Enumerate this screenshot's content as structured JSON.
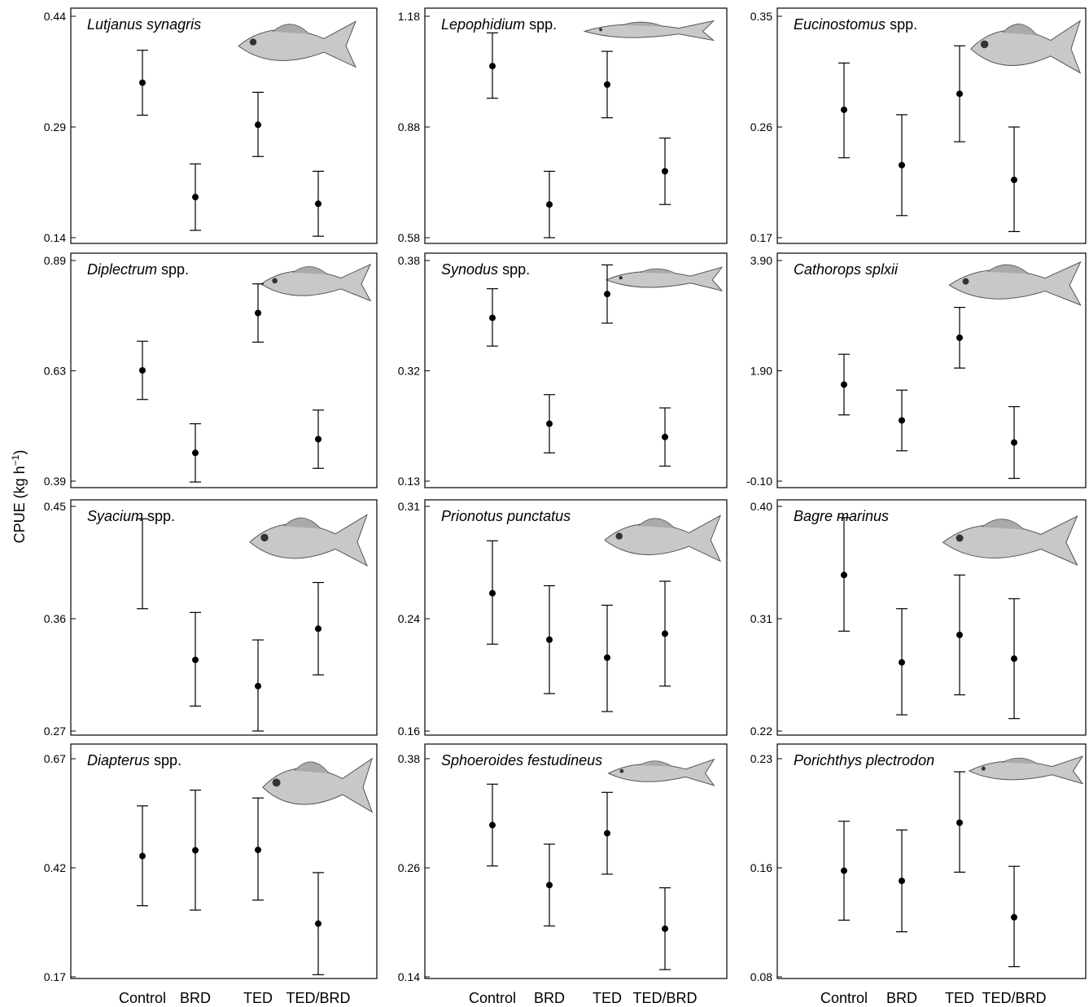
{
  "ylabel": "CPUE (kg h",
  "ylabel_sup": "−1",
  "ylabel_end": ")",
  "icons": {
    "fish": "fish-illustration"
  },
  "chart_data": [
    {
      "type": "scatter",
      "error_bars": true,
      "species_italic": "Lutjanus synagris",
      "species_suffix": "",
      "categories": [
        "Control",
        "BRD",
        "TED",
        "TED/BRD"
      ],
      "yticks": [
        "0.44",
        "0.29",
        "0.14"
      ],
      "ylim": [
        0.14,
        0.44
      ],
      "values": [
        0.35,
        0.195,
        0.293,
        0.186
      ],
      "lower": [
        0.306,
        0.15,
        0.25,
        0.142
      ],
      "upper": [
        0.394,
        0.24,
        0.337,
        0.23
      ]
    },
    {
      "type": "scatter",
      "error_bars": true,
      "species_italic": "Lepophidium",
      "species_suffix": " spp.",
      "categories": [
        "Control",
        "BRD",
        "TED",
        "TED/BRD"
      ],
      "yticks": [
        "1.18",
        "0.88",
        "0.58"
      ],
      "ylim": [
        0.58,
        1.18
      ],
      "values": [
        1.045,
        0.67,
        0.995,
        0.76
      ],
      "lower": [
        0.958,
        0.58,
        0.905,
        0.67
      ],
      "upper": [
        1.135,
        0.76,
        1.085,
        0.85
      ]
    },
    {
      "type": "scatter",
      "error_bars": true,
      "species_italic": "Eucinostomus",
      "species_suffix": " spp.",
      "categories": [
        "Control",
        "BRD",
        "TED",
        "TED/BRD"
      ],
      "yticks": [
        "0.35",
        "0.26",
        "0.17"
      ],
      "ylim": [
        0.17,
        0.35
      ],
      "values": [
        0.274,
        0.229,
        0.287,
        0.217
      ],
      "lower": [
        0.235,
        0.188,
        0.248,
        0.175
      ],
      "upper": [
        0.312,
        0.27,
        0.326,
        0.26
      ]
    },
    {
      "type": "scatter",
      "error_bars": true,
      "species_italic": "Diplectrum",
      "species_suffix": " spp.",
      "categories": [
        "Control",
        "BRD",
        "TED",
        "TED/BRD"
      ],
      "yticks": [
        "0.89",
        "0.63",
        "0.39"
      ],
      "ylim": [
        0.39,
        0.89
      ],
      "values": [
        0.641,
        0.454,
        0.771,
        0.485
      ],
      "lower": [
        0.575,
        0.388,
        0.705,
        0.419
      ],
      "upper": [
        0.707,
        0.52,
        0.837,
        0.551
      ]
    },
    {
      "type": "scatter",
      "error_bars": true,
      "species_italic": "Synodus",
      "species_suffix": " spp.",
      "categories": [
        "Control",
        "BRD",
        "TED",
        "TED/BRD"
      ],
      "yticks": [
        "0.38",
        "0.32",
        "0.13"
      ],
      "ylim": [
        0.13,
        0.38
      ],
      "values": [
        0.315,
        0.195,
        0.342,
        0.18
      ],
      "lower": [
        0.283,
        0.162,
        0.309,
        0.147
      ],
      "upper": [
        0.348,
        0.228,
        0.375,
        0.213
      ]
    },
    {
      "type": "scatter",
      "error_bars": true,
      "species_italic": "Cathorops splxii",
      "species_suffix": "",
      "categories": [
        "Control",
        "BRD",
        "TED",
        "TED/BRD"
      ],
      "yticks": [
        "3.90",
        "1.90",
        "-0.10"
      ],
      "ylim": [
        -0.1,
        3.9
      ],
      "values": [
        1.65,
        1.0,
        2.5,
        0.6
      ],
      "lower": [
        1.1,
        0.45,
        1.95,
        -0.05
      ],
      "upper": [
        2.2,
        1.55,
        3.05,
        1.25
      ]
    },
    {
      "type": "scatter",
      "error_bars": true,
      "species_italic": "Syacium",
      "species_suffix": " spp.",
      "categories": [
        "Control",
        "BRD",
        "TED",
        "TED/BRD"
      ],
      "yticks": [
        "0.45",
        "0.36",
        "0.27"
      ],
      "ylim": [
        0.27,
        0.45
      ],
      "values": [
        null,
        0.327,
        0.306,
        0.352
      ],
      "lower": [
        0.368,
        0.29,
        0.27,
        0.315
      ],
      "upper": [
        0.44,
        0.365,
        0.343,
        0.389
      ]
    },
    {
      "type": "scatter",
      "error_bars": true,
      "species_italic": "Prionotus punctatus",
      "species_suffix": "",
      "categories": [
        "Control",
        "BRD",
        "TED",
        "TED/BRD"
      ],
      "yticks": [
        "0.31",
        "0.24",
        "0.16"
      ],
      "ylim": [
        0.16,
        0.31
      ],
      "values": [
        0.252,
        0.221,
        0.209,
        0.225
      ],
      "lower": [
        0.218,
        0.185,
        0.173,
        0.19
      ],
      "upper": [
        0.287,
        0.257,
        0.244,
        0.26
      ]
    },
    {
      "type": "scatter",
      "error_bars": true,
      "species_italic": "Bagre marinus",
      "species_suffix": "",
      "categories": [
        "Control",
        "BRD",
        "TED",
        "TED/BRD"
      ],
      "yticks": [
        "0.40",
        "0.31",
        "0.22"
      ],
      "ylim": [
        0.22,
        0.4
      ],
      "values": [
        0.345,
        0.275,
        0.297,
        0.278
      ],
      "lower": [
        0.3,
        0.233,
        0.249,
        0.23
      ],
      "upper": [
        0.391,
        0.318,
        0.345,
        0.326
      ]
    },
    {
      "type": "scatter",
      "error_bars": true,
      "species_italic": "Diapterus",
      "species_suffix": " spp.",
      "categories": [
        "Control",
        "BRD",
        "TED",
        "TED/BRD"
      ],
      "yticks": [
        "0.67",
        "0.42",
        "0.17"
      ],
      "ylim": [
        0.17,
        0.67
      ],
      "values": [
        0.447,
        0.46,
        0.461,
        0.292
      ],
      "lower": [
        0.333,
        0.323,
        0.346,
        0.175
      ],
      "upper": [
        0.562,
        0.598,
        0.58,
        0.409
      ]
    },
    {
      "type": "scatter",
      "error_bars": true,
      "species_italic": "Sphoeroides festudineus",
      "species_suffix": "",
      "categories": [
        "Control",
        "BRD",
        "TED",
        "TED/BRD"
      ],
      "yticks": [
        "0.38",
        "0.26",
        "0.14"
      ],
      "ylim": [
        0.14,
        0.38
      ],
      "values": [
        0.307,
        0.241,
        0.298,
        0.193
      ],
      "lower": [
        0.262,
        0.196,
        0.253,
        0.148
      ],
      "upper": [
        0.352,
        0.286,
        0.343,
        0.238
      ]
    },
    {
      "type": "scatter",
      "error_bars": true,
      "species_italic": "Porichthys plectrodon",
      "species_suffix": "",
      "categories": [
        "Control",
        "BRD",
        "TED",
        "TED/BRD"
      ],
      "yticks": [
        "0.23",
        "0.16",
        "0.08"
      ],
      "ylim": [
        0.08,
        0.23
      ],
      "values": [
        0.153,
        0.146,
        0.186,
        0.121
      ],
      "lower": [
        0.119,
        0.111,
        0.152,
        0.087
      ],
      "upper": [
        0.187,
        0.181,
        0.221,
        0.156
      ]
    }
  ]
}
